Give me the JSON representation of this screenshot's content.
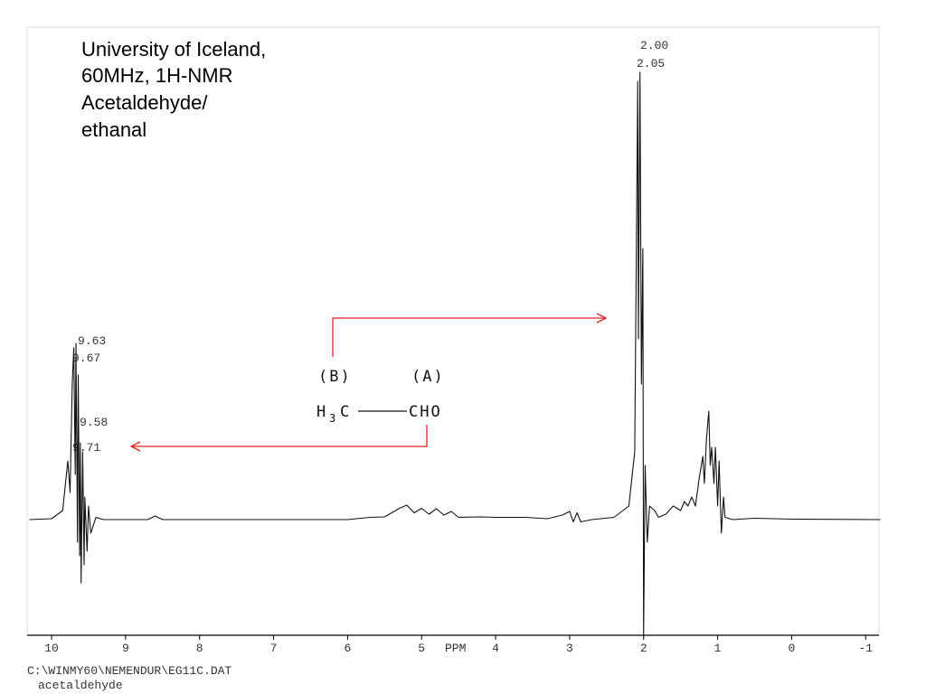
{
  "chart_data": {
    "type": "line",
    "title": [
      "University of Iceland,",
      "60MHz, 1H-NMR",
      "Acetaldehyde/",
      "ethanal"
    ],
    "x_label": "PPM",
    "xlim": [
      10.33,
      -1.18
    ],
    "xticks": [
      10,
      9,
      8,
      7,
      6,
      5,
      4,
      3,
      2,
      1,
      0,
      -1
    ],
    "ylim": [
      -25.6,
      109
    ],
    "series": [
      {
        "color": "#111111",
        "x": [
          10.3,
          10.0,
          9.85,
          9.78,
          9.75,
          9.72,
          9.7,
          9.68,
          9.67,
          9.65,
          9.64,
          9.62,
          9.61,
          9.6,
          9.58,
          9.56,
          9.55,
          9.52,
          9.5,
          9.47,
          9.4,
          9.3,
          8.7,
          8.6,
          8.5,
          6.0,
          5.7,
          5.5,
          5.3,
          5.2,
          5.1,
          5.0,
          4.9,
          4.8,
          4.7,
          4.6,
          4.5,
          4.2,
          4.0,
          3.6,
          3.3,
          3.1,
          3.0,
          2.95,
          2.9,
          2.85,
          2.7,
          2.4,
          2.2,
          2.12,
          2.08,
          2.07,
          2.05,
          2.03,
          2.01,
          2.0,
          1.98,
          1.95,
          1.92,
          1.85,
          1.8,
          1.7,
          1.6,
          1.5,
          1.45,
          1.4,
          1.35,
          1.3,
          1.25,
          1.2,
          1.18,
          1.15,
          1.12,
          1.1,
          1.08,
          1.05,
          1.03,
          1.0,
          0.98,
          0.95,
          0.92,
          0.9,
          0.8,
          0.5,
          0.0,
          -1.2
        ],
        "values": [
          0,
          0.2,
          2,
          13,
          6,
          30,
          38,
          10,
          39,
          -5,
          32,
          -8,
          17,
          -14,
          15,
          -10,
          5,
          -7,
          3,
          -3,
          0.5,
          0,
          0,
          0.8,
          0,
          0,
          0.5,
          0.6,
          2.5,
          3.2,
          1.5,
          2.5,
          1.2,
          2.4,
          1.0,
          1.8,
          0.5,
          0.6,
          0.5,
          0.5,
          0.2,
          1.0,
          1.8,
          -0.5,
          1.5,
          -0.5,
          0,
          0.5,
          3,
          15,
          97,
          40,
          99,
          30,
          60,
          -26,
          12,
          -5,
          3,
          2,
          0.5,
          1.2,
          3,
          2,
          4,
          3,
          5,
          3,
          9,
          14,
          8,
          18,
          24,
          12,
          16,
          8,
          16,
          3,
          13,
          -3,
          5,
          0.5,
          0,
          0.3,
          0.1,
          0
        ]
      }
    ],
    "peak_labels": [
      "2.00",
      "2.05",
      "9.63",
      "9.67",
      "9.58",
      "9.71"
    ],
    "structure": {
      "group_b": "(B)",
      "group_a": "(A)",
      "h": "H",
      "sub": "3",
      "c": "C",
      "cho": "CHO"
    },
    "footer": [
      "C:\\WINMY60\\NEMENDUR\\EG11C.DAT",
      "acetaldehyde"
    ]
  }
}
